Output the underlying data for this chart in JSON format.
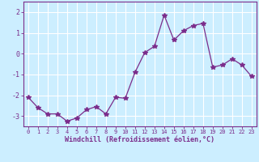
{
  "x": [
    0,
    1,
    2,
    3,
    4,
    5,
    6,
    7,
    8,
    9,
    10,
    11,
    12,
    13,
    14,
    15,
    16,
    17,
    18,
    19,
    20,
    21,
    22,
    23
  ],
  "y": [
    -2.1,
    -2.6,
    -2.9,
    -2.9,
    -3.25,
    -3.1,
    -2.7,
    -2.55,
    -2.9,
    -2.1,
    -2.15,
    -0.9,
    0.05,
    0.35,
    1.85,
    0.65,
    1.1,
    1.35,
    1.45,
    -0.65,
    -0.55,
    -0.25,
    -0.55,
    -1.1
  ],
  "line_color": "#7b2d8b",
  "marker": "*",
  "marker_size": 4,
  "bg_color": "#cceeff",
  "grid_color": "#ffffff",
  "xlabel": "Windchill (Refroidissement éolien,°C)",
  "xlabel_color": "#7b2d8b",
  "tick_color": "#7b2d8b",
  "spine_color": "#7b2d8b",
  "ylim": [
    -3.5,
    2.5
  ],
  "xlim": [
    -0.5,
    23.5
  ],
  "yticks": [
    -3,
    -2,
    -1,
    0,
    1,
    2
  ],
  "xticks": [
    0,
    1,
    2,
    3,
    4,
    5,
    6,
    7,
    8,
    9,
    10,
    11,
    12,
    13,
    14,
    15,
    16,
    17,
    18,
    19,
    20,
    21,
    22,
    23
  ]
}
